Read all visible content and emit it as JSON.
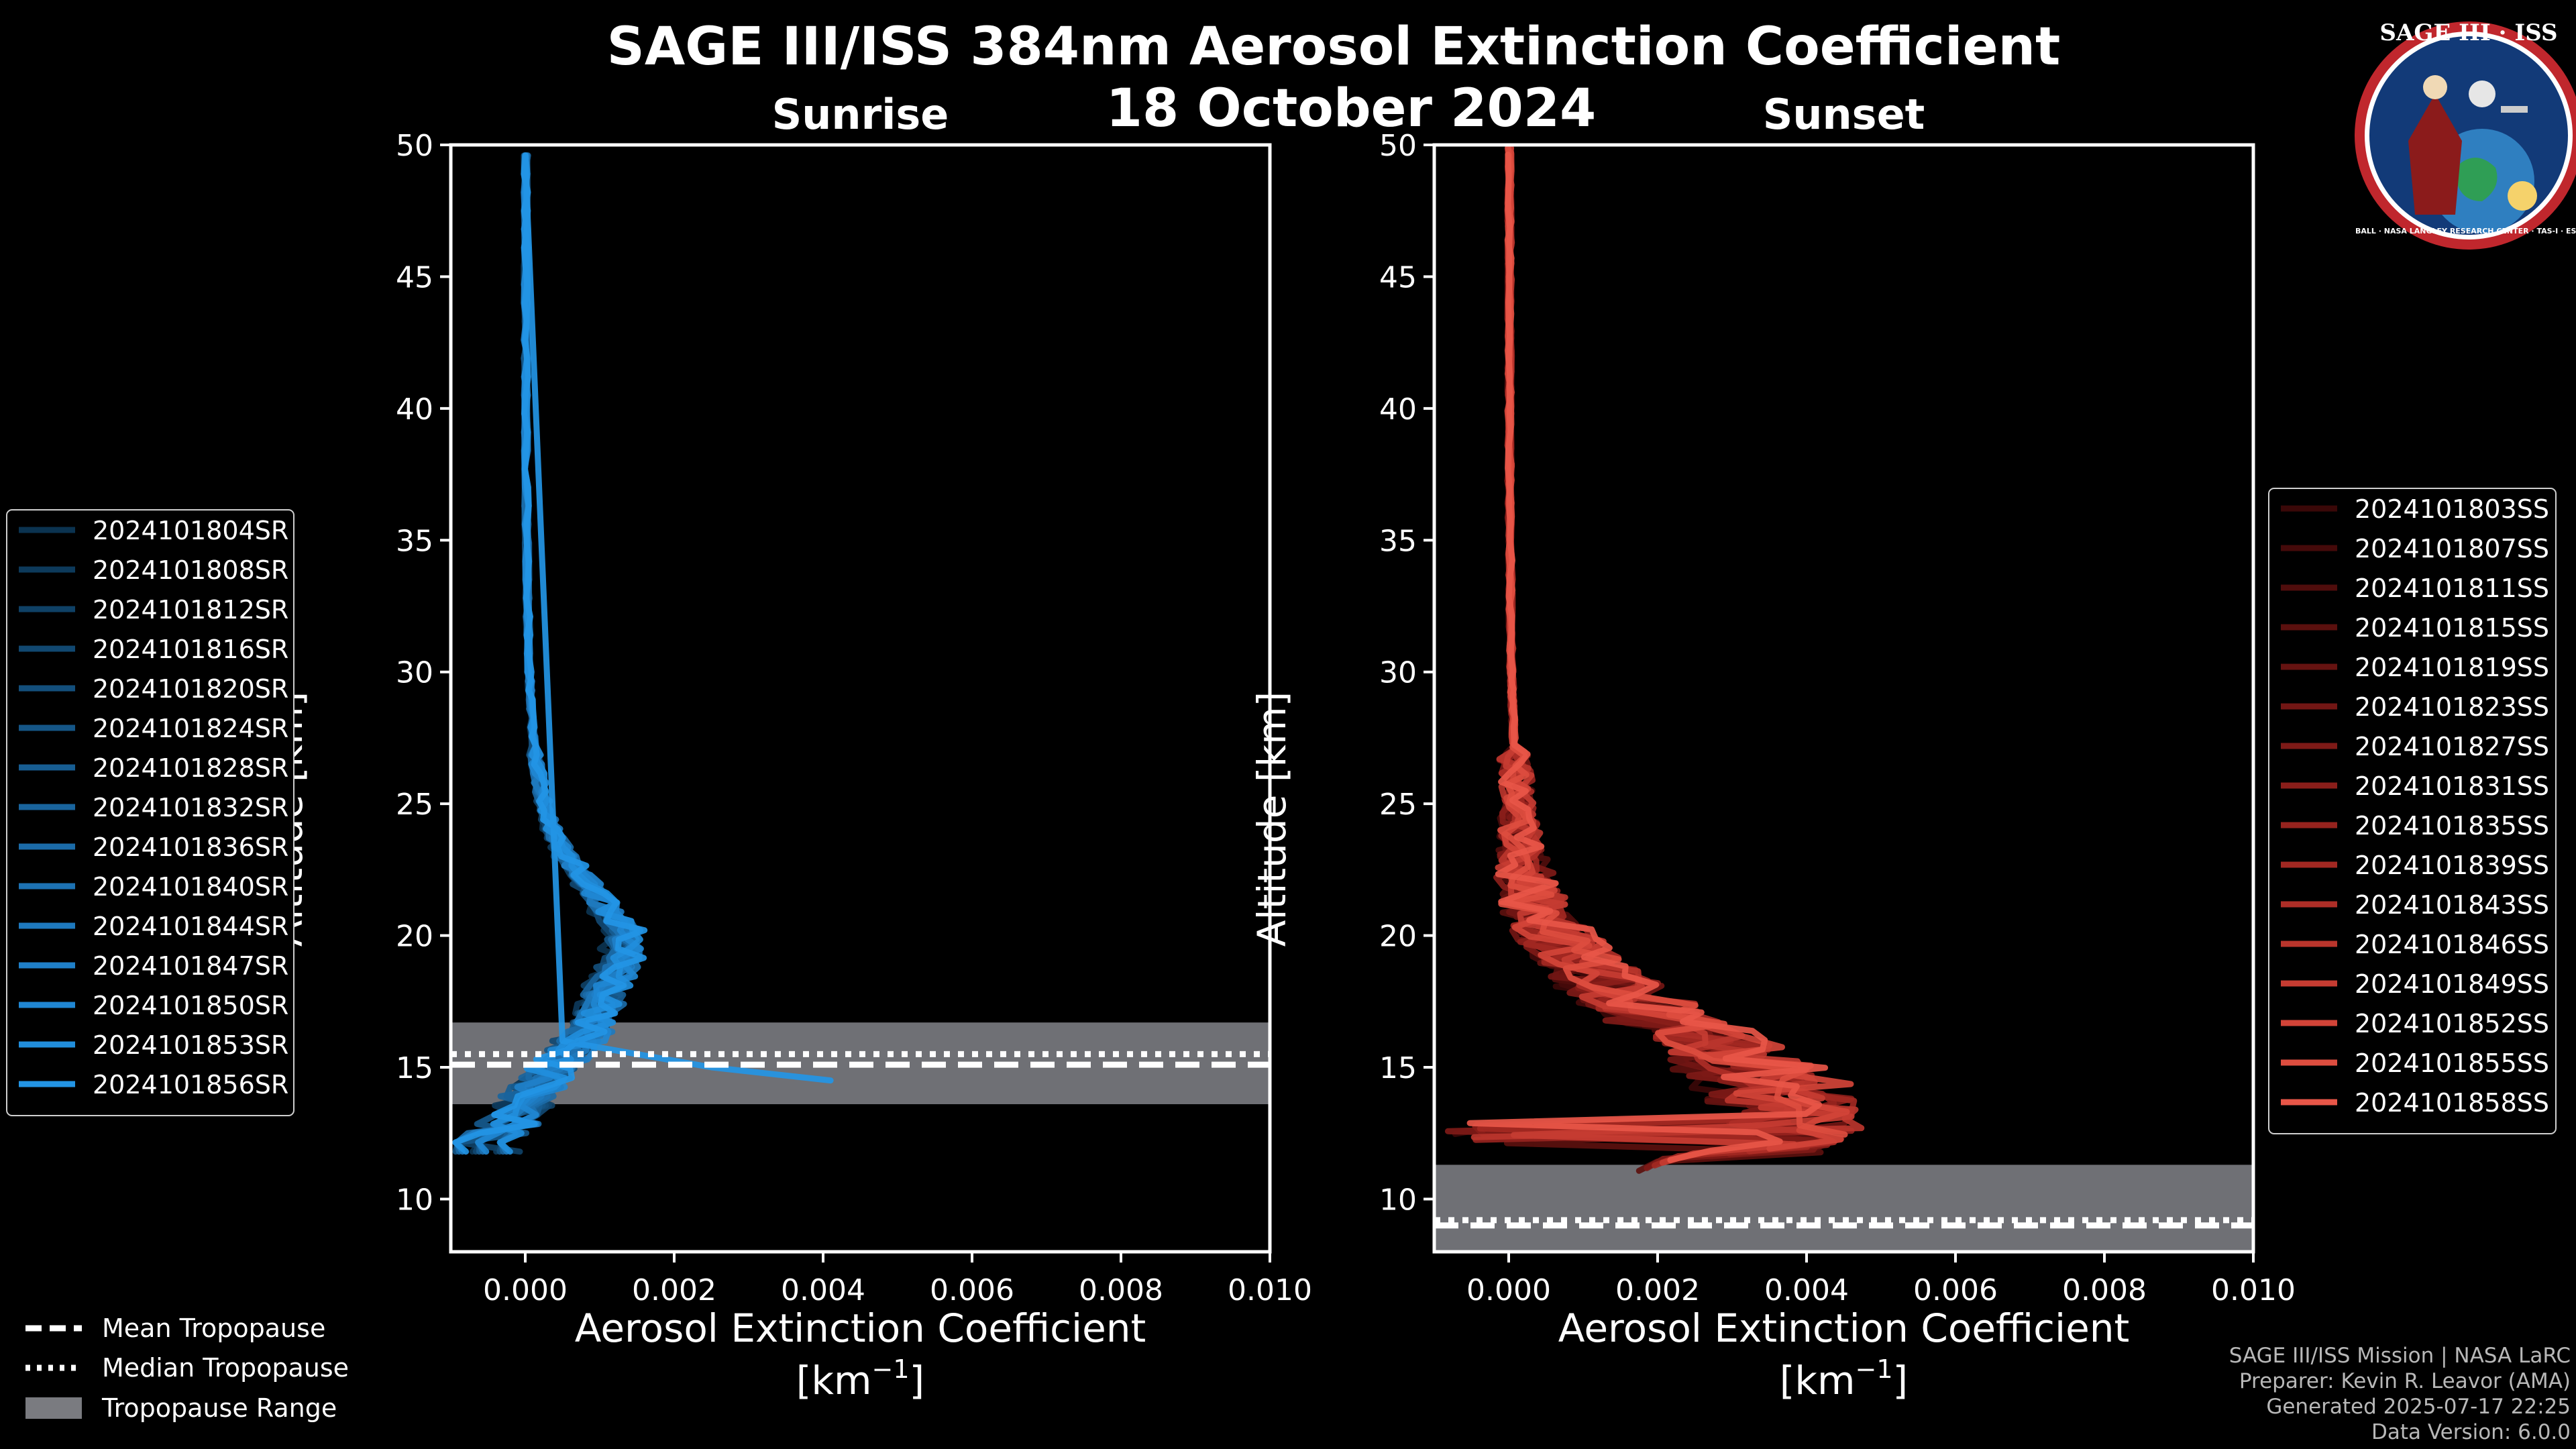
{
  "title_line1": "SAGE III/ISS 384nm Aerosol Extinction Coefficient",
  "title_line2": "18 October 2024",
  "logo": {
    "top_text": "SAGE III · ISS",
    "ring_text": "BALL · NASA LANGLEY RESEARCH CENTER · TAS-I · ESA"
  },
  "chart_data": [
    {
      "type": "line",
      "title": "Sunrise",
      "xlabel": "Aerosol Extinction Coefficient",
      "xunit": "[km",
      "xunit_sup": "−1",
      "xunit_close": "]",
      "ylabel": "Altitude [km]",
      "xlim": [
        -0.001,
        0.01
      ],
      "ylim": [
        8,
        50
      ],
      "xticks": [
        0.0,
        0.002,
        0.004,
        0.006,
        0.008,
        0.01
      ],
      "xtick_labels": [
        "0.000",
        "0.002",
        "0.004",
        "0.006",
        "0.008",
        "0.010"
      ],
      "yticks": [
        10,
        15,
        20,
        25,
        30,
        35,
        40,
        45,
        50
      ],
      "ytick_labels": [
        "10",
        "15",
        "20",
        "25",
        "30",
        "35",
        "40",
        "45",
        "50"
      ],
      "color_base": "#1a8fd6",
      "tropopause": {
        "mean": 15.1,
        "median": 15.5,
        "min": 13.6,
        "max": 16.7
      },
      "series_names": [
        "2024101804SR",
        "2024101808SR",
        "2024101812SR",
        "2024101816SR",
        "2024101820SR",
        "2024101824SR",
        "2024101828SR",
        "2024101832SR",
        "2024101836SR",
        "2024101840SR",
        "2024101844SR",
        "2024101847SR",
        "2024101850SR",
        "2024101853SR",
        "2024101856SR"
      ],
      "series_colors": [
        "#0b3350",
        "#0d3a5b",
        "#0f4166",
        "#114871",
        "#134f7c",
        "#155687",
        "#175d92",
        "#19649d",
        "#1b6ba8",
        "#1d72b3",
        "#1e79be",
        "#1f80c9",
        "#2087d3",
        "#218edc",
        "#2395e5"
      ],
      "profile_alt": [
        12,
        13,
        14,
        15,
        16,
        17,
        18,
        19,
        20,
        21,
        22,
        23,
        24,
        25,
        26,
        27,
        28,
        29,
        30,
        32,
        34,
        36,
        38,
        40,
        42,
        44,
        46,
        48,
        50
      ],
      "profile_mean": [
        -0.0006,
        -0.0002,
        0.0001,
        0.0004,
        0.0008,
        0.0011,
        0.0012,
        0.0014,
        0.0015,
        0.0012,
        0.0009,
        0.0006,
        0.0004,
        0.00028,
        0.0002,
        0.00014,
        0.0001,
        8e-05,
        6e-05,
        4e-05,
        3e-05,
        2e-05,
        1.5e-05,
        1e-05,
        1e-05,
        1e-05,
        1e-05,
        1e-05,
        1e-05
      ],
      "spike": {
        "series": 14,
        "points": [
          [
            16.0,
            0.0005
          ],
          [
            15.0,
            0.0025
          ],
          [
            14.5,
            0.0041
          ]
        ]
      },
      "legend_position": "left"
    },
    {
      "type": "line",
      "title": "Sunset",
      "xlabel": "Aerosol Extinction Coefficient",
      "xunit": "[km",
      "xunit_sup": "−1",
      "xunit_close": "]",
      "ylabel": "Altitude [km]",
      "xlim": [
        -0.001,
        0.01
      ],
      "ylim": [
        8,
        50
      ],
      "xticks": [
        0.0,
        0.002,
        0.004,
        0.006,
        0.008,
        0.01
      ],
      "xtick_labels": [
        "0.000",
        "0.002",
        "0.004",
        "0.006",
        "0.008",
        "0.010"
      ],
      "yticks": [
        10,
        15,
        20,
        25,
        30,
        35,
        40,
        45,
        50
      ],
      "ytick_labels": [
        "10",
        "15",
        "20",
        "25",
        "30",
        "35",
        "40",
        "45",
        "50"
      ],
      "color_base": "#e8564a",
      "tropopause": {
        "mean": 9.0,
        "median": 9.2,
        "min": 8.0,
        "max": 11.3
      },
      "series_names": [
        "2024101803SS",
        "2024101807SS",
        "2024101811SS",
        "2024101815SS",
        "2024101819SS",
        "2024101823SS",
        "2024101827SS",
        "2024101831SS",
        "2024101835SS",
        "2024101839SS",
        "2024101843SS",
        "2024101846SS",
        "2024101849SS",
        "2024101852SS",
        "2024101855SS",
        "2024101858SS"
      ],
      "series_colors": [
        "#3a0808",
        "#450a0a",
        "#500d0c",
        "#5b100e",
        "#661311",
        "#721614",
        "#7e1a17",
        "#8a1e1a",
        "#96231e",
        "#a22822",
        "#ae2e27",
        "#ba352c",
        "#c63c32",
        "#d24438",
        "#dd4d3f",
        "#e85648"
      ],
      "profile_alt": [
        11.5,
        12,
        13,
        14,
        15,
        16,
        17,
        18,
        19,
        20,
        21,
        22,
        23,
        24,
        25,
        26,
        27,
        28,
        29,
        30,
        32,
        34,
        36,
        38,
        40,
        42,
        44,
        46,
        48,
        50
      ],
      "profile_mean": [
        0.0024,
        0.003,
        0.0032,
        0.003,
        0.0026,
        0.0021,
        0.0016,
        0.0012,
        0.0008,
        0.0005,
        0.0003,
        0.0002,
        0.00015,
        0.00012,
        0.0001,
        8e-05,
        6e-05,
        5e-05,
        4e-05,
        3e-05,
        2e-05,
        2e-05,
        1e-05,
        1e-05,
        1e-05,
        1e-05,
        1e-05,
        1e-05,
        1e-05,
        1e-05
      ],
      "legend_position": "right"
    }
  ],
  "tropo_legend": {
    "mean": "Mean Tropopause",
    "median": "Median Tropopause",
    "range": "Tropopause Range"
  },
  "footer": {
    "line1": "SAGE III/ISS Mission | NASA LaRC",
    "line2": "Preparer: Kevin R. Leavor (AMA)",
    "line3": "Generated 2025-07-17 22:25",
    "line4": "Data Version: 6.0.0"
  }
}
